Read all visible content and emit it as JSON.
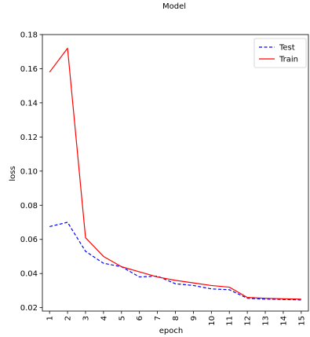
{
  "chart_data": {
    "type": "line",
    "title": "Model",
    "xlabel": "epoch",
    "ylabel": "loss",
    "x": [
      1,
      2,
      3,
      4,
      5,
      6,
      7,
      8,
      9,
      10,
      11,
      12,
      13,
      14,
      15
    ],
    "xtick_labels": [
      "1",
      "2",
      "3",
      "4",
      "5",
      "6",
      "7",
      "8",
      "9",
      "10",
      "11",
      "12",
      "13",
      "14",
      "15"
    ],
    "ylim": [
      0.018,
      0.18
    ],
    "yticks": [
      0.02,
      0.04,
      0.06,
      0.08,
      0.1,
      0.12,
      0.14,
      0.16,
      0.18
    ],
    "ytick_labels": [
      "0.02",
      "0.04",
      "0.06",
      "0.08",
      "0.10",
      "0.12",
      "0.14",
      "0.16",
      "0.18"
    ],
    "legend_position": "top-right",
    "grid": false,
    "series": [
      {
        "name": "Test",
        "color": "#0000ff",
        "linestyle": "dashed",
        "values": [
          0.0675,
          0.07,
          0.053,
          0.046,
          0.044,
          0.038,
          0.0385,
          0.034,
          0.033,
          0.031,
          0.0305,
          0.0255,
          0.025,
          0.0248,
          0.0245
        ]
      },
      {
        "name": "Train",
        "color": "#ff0000",
        "linestyle": "solid",
        "values": [
          0.158,
          0.172,
          0.061,
          0.05,
          0.044,
          0.041,
          0.038,
          0.036,
          0.0345,
          0.033,
          0.032,
          0.026,
          0.0255,
          0.0252,
          0.025
        ]
      }
    ]
  }
}
